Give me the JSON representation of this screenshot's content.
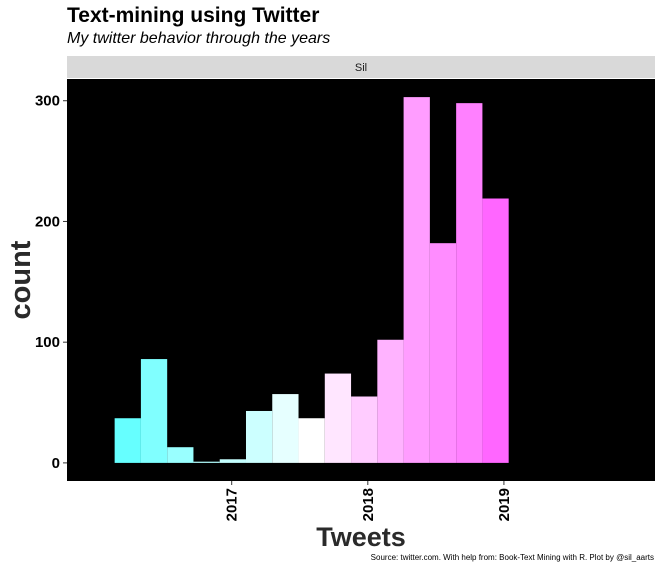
{
  "title": "Text-mining using Twitter",
  "subtitle": "My twitter behavior through the years",
  "caption": "Source: twitter.com. With help from: Book-Text Mining with R. Plot by @sil_aarts",
  "chart_data": {
    "type": "bar",
    "facet_label": "Sil",
    "xlabel": "Tweets",
    "ylabel": "count",
    "x_ticks": [
      {
        "label": "2017",
        "value": 2017.0
      },
      {
        "label": "2018",
        "value": 2018.0
      },
      {
        "label": "2019",
        "value": 2019.0
      }
    ],
    "y_ticks": [
      0,
      100,
      200,
      300
    ],
    "xlim": [
      2015.79,
      2020.11
    ],
    "ylim": [
      -15,
      318
    ],
    "bin_width": 0.193,
    "bins": [
      {
        "start": 2016.14,
        "count": 37,
        "color": "#66ffff"
      },
      {
        "start": 2016.333,
        "count": 86,
        "color": "#80ffff"
      },
      {
        "start": 2016.526,
        "count": 13,
        "color": "#99ffff"
      },
      {
        "start": 2016.719,
        "count": 1,
        "color": "#b3ffff"
      },
      {
        "start": 2016.912,
        "count": 3,
        "color": "#c4ffff"
      },
      {
        "start": 2017.105,
        "count": 43,
        "color": "#ccffff"
      },
      {
        "start": 2017.298,
        "count": 57,
        "color": "#e6ffff"
      },
      {
        "start": 2017.491,
        "count": 37,
        "color": "#ffffff"
      },
      {
        "start": 2017.684,
        "count": 74,
        "color": "#ffe6ff"
      },
      {
        "start": 2017.877,
        "count": 55,
        "color": "#ffccff"
      },
      {
        "start": 2018.07,
        "count": 102,
        "color": "#ffb3ff"
      },
      {
        "start": 2018.263,
        "count": 303,
        "color": "#ff9dff"
      },
      {
        "start": 2018.456,
        "count": 182,
        "color": "#ff8cff"
      },
      {
        "start": 2018.649,
        "count": 298,
        "color": "#ff80ff"
      },
      {
        "start": 2018.842,
        "count": 219,
        "color": "#ff66ff"
      }
    ],
    "panel_background": "#000000",
    "strip_background": "#d9d9d9",
    "grid": false,
    "legend": "none"
  }
}
